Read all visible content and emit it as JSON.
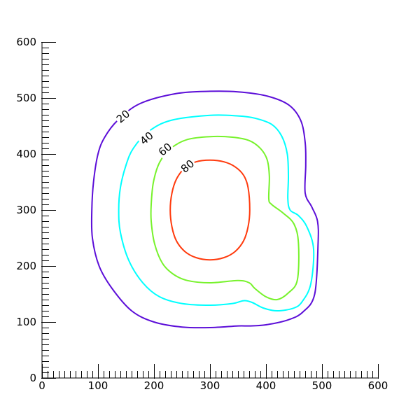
{
  "chart_data": {
    "type": "contour",
    "title": "",
    "xlabel": "",
    "ylabel": "",
    "xlim": [
      0,
      600
    ],
    "ylim": [
      0,
      600
    ],
    "grid": false,
    "x_ticks": [
      0,
      100,
      200,
      300,
      400,
      500,
      600
    ],
    "y_ticks": [
      0,
      100,
      200,
      300,
      400,
      500,
      600
    ],
    "x_tick_labels": [
      "0",
      "100",
      "200",
      "300",
      "400",
      "500",
      "600"
    ],
    "y_tick_labels": [
      "0",
      "100",
      "200",
      "300",
      "400",
      "500",
      "600"
    ],
    "minor_tick_step": 10,
    "levels": [
      {
        "value": 20,
        "label": "20",
        "color": "#5c0ed8",
        "label_at": [
          145,
          467
        ],
        "points": [
          [
            300,
            512
          ],
          [
            350,
            511
          ],
          [
            400,
            504
          ],
          [
            440,
            488
          ],
          [
            462,
            460
          ],
          [
            470,
            420
          ],
          [
            471,
            380
          ],
          [
            470,
            330
          ],
          [
            482,
            305
          ],
          [
            492,
            280
          ],
          [
            493,
            240
          ],
          [
            487,
            150
          ],
          [
            466,
            118
          ],
          [
            440,
            104
          ],
          [
            400,
            95
          ],
          [
            370,
            93
          ],
          [
            350,
            93
          ],
          [
            300,
            90
          ],
          [
            250,
            91
          ],
          [
            200,
            100
          ],
          [
            160,
            120
          ],
          [
            125,
            160
          ],
          [
            102,
            200
          ],
          [
            90,
            250
          ],
          [
            89,
            300
          ],
          [
            92,
            350
          ],
          [
            100,
            400
          ],
          [
            112,
            430
          ],
          [
            135,
            460
          ],
          [
            175,
            490
          ],
          [
            240,
            508
          ],
          [
            300,
            512
          ]
        ]
      },
      {
        "value": 40,
        "label": "40",
        "color": "#00ffff",
        "label_at": [
          187,
          428
        ],
        "points": [
          [
            300,
            469
          ],
          [
            350,
            468
          ],
          [
            380,
            464
          ],
          [
            410,
            453
          ],
          [
            428,
            432
          ],
          [
            438,
            400
          ],
          [
            440,
            360
          ],
          [
            439,
            320
          ],
          [
            443,
            300
          ],
          [
            458,
            290
          ],
          [
            473,
            270
          ],
          [
            485,
            230
          ],
          [
            480,
            168
          ],
          [
            465,
            137
          ],
          [
            450,
            125
          ],
          [
            420,
            120
          ],
          [
            395,
            125
          ],
          [
            375,
            135
          ],
          [
            360,
            138
          ],
          [
            340,
            133
          ],
          [
            300,
            130
          ],
          [
            250,
            133
          ],
          [
            210,
            145
          ],
          [
            180,
            170
          ],
          [
            155,
            210
          ],
          [
            140,
            260
          ],
          [
            137,
            300
          ],
          [
            140,
            340
          ],
          [
            150,
            380
          ],
          [
            163,
            410
          ],
          [
            190,
            440
          ],
          [
            230,
            460
          ],
          [
            300,
            469
          ]
        ]
      },
      {
        "value": 60,
        "label": "60",
        "color": "#77f22c",
        "label_at": [
          220,
          408
        ],
        "points": [
          [
            300,
            431
          ],
          [
            340,
            430
          ],
          [
            370,
            424
          ],
          [
            390,
            410
          ],
          [
            402,
            390
          ],
          [
            406,
            360
          ],
          [
            405,
            320
          ],
          [
            410,
            310
          ],
          [
            430,
            295
          ],
          [
            450,
            275
          ],
          [
            458,
            240
          ],
          [
            456,
            175
          ],
          [
            440,
            152
          ],
          [
            420,
            140
          ],
          [
            400,
            145
          ],
          [
            380,
            160
          ],
          [
            370,
            170
          ],
          [
            350,
            174
          ],
          [
            300,
            170
          ],
          [
            260,
            174
          ],
          [
            235,
            185
          ],
          [
            215,
            205
          ],
          [
            201,
            240
          ],
          [
            195,
            280
          ],
          [
            195,
            310
          ],
          [
            199,
            350
          ],
          [
            210,
            385
          ],
          [
            230,
            410
          ],
          [
            260,
            426
          ],
          [
            300,
            431
          ]
        ]
      },
      {
        "value": 80,
        "label": "80",
        "color": "#ff3b0e",
        "label_at": [
          260,
          378
        ],
        "points": [
          [
            300,
            389
          ],
          [
            325,
            386
          ],
          [
            345,
            377
          ],
          [
            360,
            362
          ],
          [
            368,
            340
          ],
          [
            371,
            300
          ],
          [
            368,
            270
          ],
          [
            360,
            245
          ],
          [
            345,
            226
          ],
          [
            325,
            215
          ],
          [
            300,
            211
          ],
          [
            275,
            215
          ],
          [
            255,
            226
          ],
          [
            240,
            245
          ],
          [
            232,
            270
          ],
          [
            229,
            300
          ],
          [
            232,
            330
          ],
          [
            240,
            355
          ],
          [
            255,
            375
          ],
          [
            275,
            386
          ],
          [
            300,
            389
          ]
        ]
      }
    ]
  }
}
